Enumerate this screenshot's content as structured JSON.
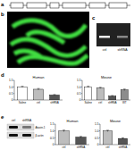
{
  "figure": {
    "panel_labels": [
      "a",
      "b",
      "c",
      "d",
      "e"
    ],
    "gel": {
      "lanes": [
        "ctrl",
        "shRNA"
      ]
    },
    "blot": {
      "lanes": [
        "ctrl",
        "shRNA"
      ],
      "rows": [
        "Ataxin-1",
        "β-actin"
      ]
    }
  },
  "chart_data": [
    {
      "type": "bar",
      "title": "Human",
      "categories": [
        "Saline",
        "ctrl",
        "shRNA"
      ],
      "values": [
        1.0,
        0.82,
        0.38
      ],
      "errors": [
        0.05,
        0.06,
        0.04
      ],
      "colors": [
        "#ffffff",
        "#bdbdbd",
        "#555555"
      ],
      "ylim": [
        0,
        1.5
      ],
      "yticks": [
        0,
        0.5,
        {
          "value": 1,
          "label": "1.0"
        },
        1.5
      ]
    },
    {
      "type": "bar",
      "title": "Mouse",
      "categories": [
        "Saline",
        "ctrl",
        "shRNA",
        "WT"
      ],
      "values": [
        1.0,
        0.92,
        0.3,
        0.78
      ],
      "errors": [
        0.06,
        0.05,
        0.04,
        0.06
      ],
      "colors": [
        "#ffffff",
        "#bdbdbd",
        "#555555",
        "#8c8c8c"
      ],
      "ylim": [
        0,
        1.5
      ],
      "yticks": [
        0,
        0.5,
        {
          "value": 1,
          "label": "1.0"
        },
        1.5
      ]
    },
    {
      "type": "bar",
      "title": "Human",
      "categories": [
        "ctrl",
        "shRNA"
      ],
      "values": [
        1.0,
        0.55
      ],
      "errors": [
        0.06,
        0.05
      ],
      "colors": [
        "#bdbdbd",
        "#555555"
      ],
      "ylim": [
        0,
        1.5
      ],
      "yticks": [
        0,
        0.5,
        {
          "value": 1,
          "label": "1.0"
        },
        1.5
      ]
    },
    {
      "type": "bar",
      "title": "Mouse",
      "categories": [
        "ctrl",
        "shRNA"
      ],
      "values": [
        1.0,
        0.45
      ],
      "errors": [
        0.05,
        0.05
      ],
      "colors": [
        "#bdbdbd",
        "#555555"
      ],
      "ylim": [
        0,
        1.5
      ],
      "yticks": [
        0,
        0.5,
        {
          "value": 1,
          "label": "1.0"
        },
        1.5
      ]
    }
  ]
}
